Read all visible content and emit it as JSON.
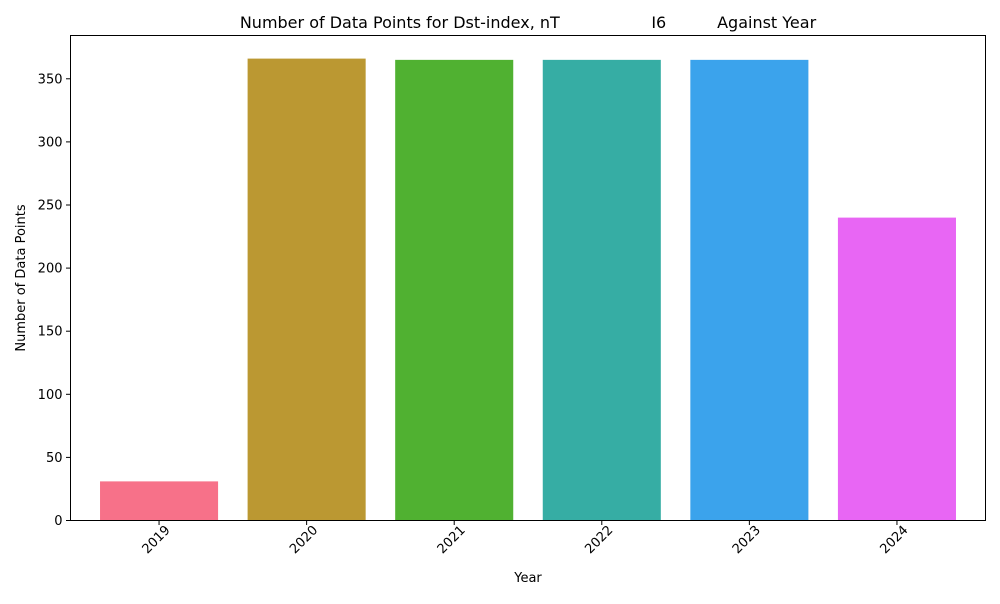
{
  "chart_data": {
    "type": "bar",
    "title": "Number of Data Points for Dst-index, nT                  I6          Against Year",
    "xlabel": "Year",
    "ylabel": "Number of Data Points",
    "categories": [
      "2019",
      "2020",
      "2021",
      "2022",
      "2023",
      "2024"
    ],
    "values": [
      31,
      366,
      365,
      365,
      365,
      240
    ],
    "colors": [
      "#f77189",
      "#bb9832",
      "#50b131",
      "#36ada4",
      "#3ba3ec",
      "#e866f4"
    ],
    "ylim": [
      0,
      384.3
    ],
    "yticks": [
      0,
      50,
      100,
      150,
      200,
      250,
      300,
      350
    ],
    "x_tick_rotation_deg": 45,
    "grid": false,
    "legend": "none"
  }
}
